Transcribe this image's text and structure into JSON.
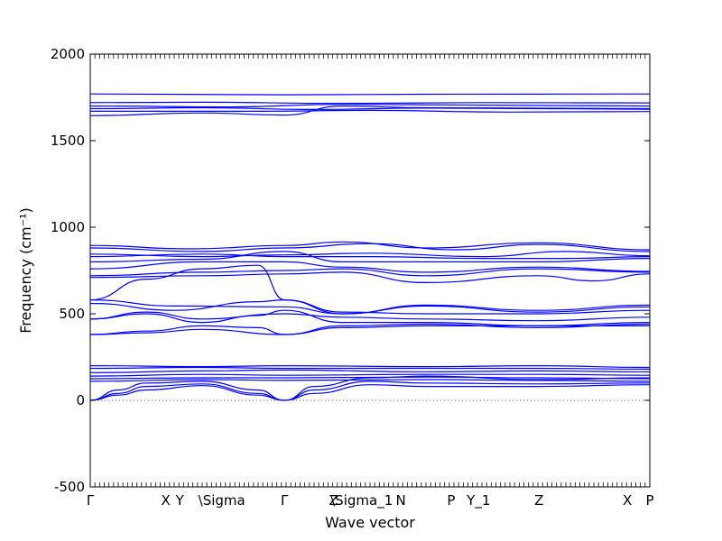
{
  "chart_data": {
    "type": "line",
    "title": "",
    "xlabel": "Wave vector",
    "ylabel": "Frequency (cm⁻¹)",
    "ylim": [
      -500,
      2000
    ],
    "yticks": [
      -500,
      0,
      500,
      1000,
      1500,
      2000
    ],
    "xlim": [
      0,
      1
    ],
    "xticks": [
      {
        "x": 0.0,
        "label": "Γ"
      },
      {
        "x": 0.135,
        "label": "X"
      },
      {
        "x": 0.16,
        "label": "Y"
      },
      {
        "x": 0.235,
        "label": "\\Sigma"
      },
      {
        "x": 0.347,
        "label": "Γ"
      },
      {
        "x": 0.435,
        "label": "Z"
      },
      {
        "x": 0.485,
        "label": "\\Sigma_1"
      },
      {
        "x": 0.555,
        "label": "N"
      },
      {
        "x": 0.645,
        "label": "P"
      },
      {
        "x": 0.694,
        "label": "Y_1"
      },
      {
        "x": 0.802,
        "label": "Z"
      },
      {
        "x": 0.96,
        "label": "X"
      },
      {
        "x": 1.0,
        "label": "P"
      }
    ],
    "zero_line": 0,
    "grid": false,
    "color": "#0000ff",
    "series": [
      {
        "values": [
          [
            0,
            1770
          ],
          [
            0.35,
            1765
          ],
          [
            0.6,
            1768
          ],
          [
            1,
            1770
          ]
        ]
      },
      {
        "values": [
          [
            0,
            1720
          ],
          [
            0.2,
            1722
          ],
          [
            0.45,
            1715
          ],
          [
            0.7,
            1720
          ],
          [
            1,
            1718
          ]
        ]
      },
      {
        "values": [
          [
            0,
            1700
          ],
          [
            0.25,
            1695
          ],
          [
            0.45,
            1710
          ],
          [
            0.7,
            1705
          ],
          [
            1,
            1700
          ]
        ]
      },
      {
        "values": [
          [
            0,
            1685
          ],
          [
            0.2,
            1690
          ],
          [
            0.4,
            1680
          ],
          [
            0.6,
            1688
          ],
          [
            1,
            1682
          ]
        ]
      },
      {
        "values": [
          [
            0,
            1670
          ],
          [
            0.3,
            1670
          ],
          [
            0.5,
            1675
          ],
          [
            0.75,
            1665
          ],
          [
            1,
            1668
          ]
        ]
      },
      {
        "values": [
          [
            0,
            1645
          ],
          [
            0.2,
            1660
          ],
          [
            0.347,
            1648
          ],
          [
            0.45,
            1700
          ],
          [
            0.6,
            1690
          ],
          [
            1,
            1685
          ]
        ]
      },
      {
        "values": [
          [
            0,
            895
          ],
          [
            0.18,
            875
          ],
          [
            0.35,
            895
          ],
          [
            0.45,
            915
          ],
          [
            0.6,
            880
          ],
          [
            0.8,
            910
          ],
          [
            1,
            870
          ]
        ]
      },
      {
        "values": [
          [
            0,
            880
          ],
          [
            0.2,
            860
          ],
          [
            0.347,
            880
          ],
          [
            0.5,
            905
          ],
          [
            0.65,
            870
          ],
          [
            0.8,
            900
          ],
          [
            1,
            860
          ]
        ]
      },
      {
        "values": [
          [
            0,
            845
          ],
          [
            0.2,
            830
          ],
          [
            0.347,
            840
          ],
          [
            0.5,
            850
          ],
          [
            0.7,
            830
          ],
          [
            0.85,
            860
          ],
          [
            1,
            835
          ]
        ]
      },
      {
        "values": [
          [
            0,
            830
          ],
          [
            0.2,
            845
          ],
          [
            0.347,
            830
          ],
          [
            0.5,
            830
          ],
          [
            0.7,
            820
          ],
          [
            0.85,
            820
          ],
          [
            1,
            830
          ]
        ]
      },
      {
        "values": [
          [
            0,
            800
          ],
          [
            0.2,
            815
          ],
          [
            0.347,
            860
          ],
          [
            0.45,
            800
          ],
          [
            0.6,
            800
          ],
          [
            0.8,
            800
          ],
          [
            1,
            820
          ]
        ]
      },
      {
        "values": [
          [
            0,
            760
          ],
          [
            0.2,
            800
          ],
          [
            0.347,
            800
          ],
          [
            0.45,
            770
          ],
          [
            0.6,
            740
          ],
          [
            0.8,
            770
          ],
          [
            1,
            745
          ]
        ]
      },
      {
        "values": [
          [
            0,
            720
          ],
          [
            0.2,
            740
          ],
          [
            0.347,
            750
          ],
          [
            0.45,
            760
          ],
          [
            0.6,
            720
          ],
          [
            0.8,
            760
          ],
          [
            1,
            740
          ]
        ]
      },
      {
        "values": [
          [
            0,
            710
          ],
          [
            0.2,
            720
          ],
          [
            0.347,
            730
          ],
          [
            0.45,
            740
          ],
          [
            0.6,
            680
          ],
          [
            0.8,
            720
          ],
          [
            0.9,
            690
          ],
          [
            1,
            730
          ]
        ]
      },
      {
        "values": [
          [
            0,
            580
          ],
          [
            0.1,
            700
          ],
          [
            0.2,
            760
          ],
          [
            0.3,
            780
          ],
          [
            0.347,
            580
          ],
          [
            0.45,
            500
          ],
          [
            0.6,
            550
          ],
          [
            0.8,
            520
          ],
          [
            1,
            550
          ]
        ]
      },
      {
        "values": [
          [
            0,
            580
          ],
          [
            0.15,
            545
          ],
          [
            0.347,
            540
          ],
          [
            0.45,
            500
          ],
          [
            0.6,
            545
          ],
          [
            0.8,
            510
          ],
          [
            1,
            540
          ]
        ]
      },
      {
        "values": [
          [
            0,
            560
          ],
          [
            0.15,
            520
          ],
          [
            0.3,
            570
          ],
          [
            0.347,
            580
          ],
          [
            0.45,
            510
          ],
          [
            0.6,
            500
          ],
          [
            0.8,
            500
          ],
          [
            1,
            520
          ]
        ]
      },
      {
        "values": [
          [
            0,
            470
          ],
          [
            0.1,
            510
          ],
          [
            0.2,
            470
          ],
          [
            0.347,
            500
          ],
          [
            0.45,
            480
          ],
          [
            0.6,
            470
          ],
          [
            0.8,
            460
          ],
          [
            1,
            480
          ]
        ]
      },
      {
        "values": [
          [
            0,
            470
          ],
          [
            0.1,
            500
          ],
          [
            0.2,
            450
          ],
          [
            0.3,
            490
          ],
          [
            0.347,
            520
          ],
          [
            0.45,
            450
          ],
          [
            0.6,
            450
          ],
          [
            0.8,
            430
          ],
          [
            1,
            450
          ]
        ]
      },
      {
        "values": [
          [
            0,
            380
          ],
          [
            0.1,
            400
          ],
          [
            0.2,
            430
          ],
          [
            0.3,
            420
          ],
          [
            0.347,
            380
          ],
          [
            0.45,
            430
          ],
          [
            0.6,
            440
          ],
          [
            0.8,
            420
          ],
          [
            1,
            440
          ]
        ]
      },
      {
        "values": [
          [
            0,
            380
          ],
          [
            0.1,
            390
          ],
          [
            0.2,
            410
          ],
          [
            0.347,
            380
          ],
          [
            0.45,
            420
          ],
          [
            0.6,
            430
          ],
          [
            0.8,
            430
          ],
          [
            1,
            430
          ]
        ]
      },
      {
        "values": [
          [
            0,
            200
          ],
          [
            0.2,
            195
          ],
          [
            0.347,
            200
          ],
          [
            0.6,
            195
          ],
          [
            0.8,
            200
          ],
          [
            1,
            190
          ]
        ]
      },
      {
        "values": [
          [
            0,
            185
          ],
          [
            0.2,
            190
          ],
          [
            0.347,
            185
          ],
          [
            0.6,
            185
          ],
          [
            0.8,
            185
          ],
          [
            1,
            180
          ]
        ]
      },
      {
        "values": [
          [
            0,
            160
          ],
          [
            0.2,
            170
          ],
          [
            0.347,
            175
          ],
          [
            0.6,
            165
          ],
          [
            0.8,
            170
          ],
          [
            1,
            165
          ]
        ]
      },
      {
        "values": [
          [
            0,
            140
          ],
          [
            0.2,
            150
          ],
          [
            0.347,
            145
          ],
          [
            0.6,
            150
          ],
          [
            0.8,
            150
          ],
          [
            1,
            145
          ]
        ]
      },
      {
        "values": [
          [
            0,
            125
          ],
          [
            0.2,
            130
          ],
          [
            0.347,
            130
          ],
          [
            0.6,
            135
          ],
          [
            0.8,
            130
          ],
          [
            1,
            125
          ]
        ]
      },
      {
        "values": [
          [
            0,
            110
          ],
          [
            0.2,
            120
          ],
          [
            0.347,
            115
          ],
          [
            0.6,
            120
          ],
          [
            0.8,
            115
          ],
          [
            1,
            110
          ]
        ]
      },
      {
        "values": [
          [
            0,
            0
          ],
          [
            0.05,
            60
          ],
          [
            0.1,
            100
          ],
          [
            0.2,
            110
          ],
          [
            0.3,
            60
          ],
          [
            0.347,
            0
          ],
          [
            0.4,
            80
          ],
          [
            0.5,
            130
          ],
          [
            0.6,
            140
          ],
          [
            0.8,
            120
          ],
          [
            1,
            130
          ]
        ]
      },
      {
        "values": [
          [
            0,
            0
          ],
          [
            0.05,
            40
          ],
          [
            0.1,
            80
          ],
          [
            0.2,
            95
          ],
          [
            0.3,
            40
          ],
          [
            0.347,
            0
          ],
          [
            0.4,
            60
          ],
          [
            0.5,
            110
          ],
          [
            0.6,
            100
          ],
          [
            0.8,
            95
          ],
          [
            1,
            100
          ]
        ]
      },
      {
        "values": [
          [
            0,
            0
          ],
          [
            0.05,
            30
          ],
          [
            0.1,
            60
          ],
          [
            0.2,
            85
          ],
          [
            0.3,
            30
          ],
          [
            0.347,
            0
          ],
          [
            0.4,
            40
          ],
          [
            0.5,
            90
          ],
          [
            0.6,
            80
          ],
          [
            0.8,
            80
          ],
          [
            1,
            90
          ]
        ]
      }
    ]
  }
}
